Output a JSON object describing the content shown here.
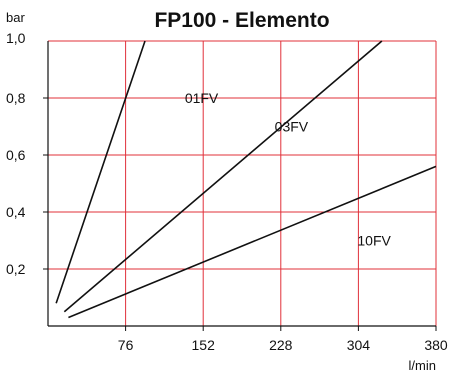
{
  "chart_data": {
    "type": "line",
    "title": "FP100 - Elemento",
    "ylabel": "bar",
    "xlabel": "l/min",
    "xlim": [
      0,
      380
    ],
    "ylim": [
      0,
      1.0
    ],
    "x_ticks": [
      76,
      152,
      228,
      304,
      380
    ],
    "y_ticks": [
      0.2,
      0.4,
      0.6,
      0.8
    ],
    "y_top_label": "1,0",
    "x_tick_labels": [
      "76",
      "152",
      "228",
      "304",
      "380"
    ],
    "y_tick_labels": [
      "0,2",
      "0,4",
      "0,6",
      "0,8"
    ],
    "grid": true,
    "grid_color": "#e0303a",
    "line_color": "#111111",
    "series": [
      {
        "name": "01FV",
        "points": [
          [
            8,
            0.08
          ],
          [
            95,
            1.0
          ]
        ]
      },
      {
        "name": "03FV",
        "points": [
          [
            16,
            0.05
          ],
          [
            327,
            1.0
          ]
        ]
      },
      {
        "name": "10FV",
        "points": [
          [
            20,
            0.03
          ],
          [
            380,
            0.56
          ]
        ]
      }
    ]
  }
}
